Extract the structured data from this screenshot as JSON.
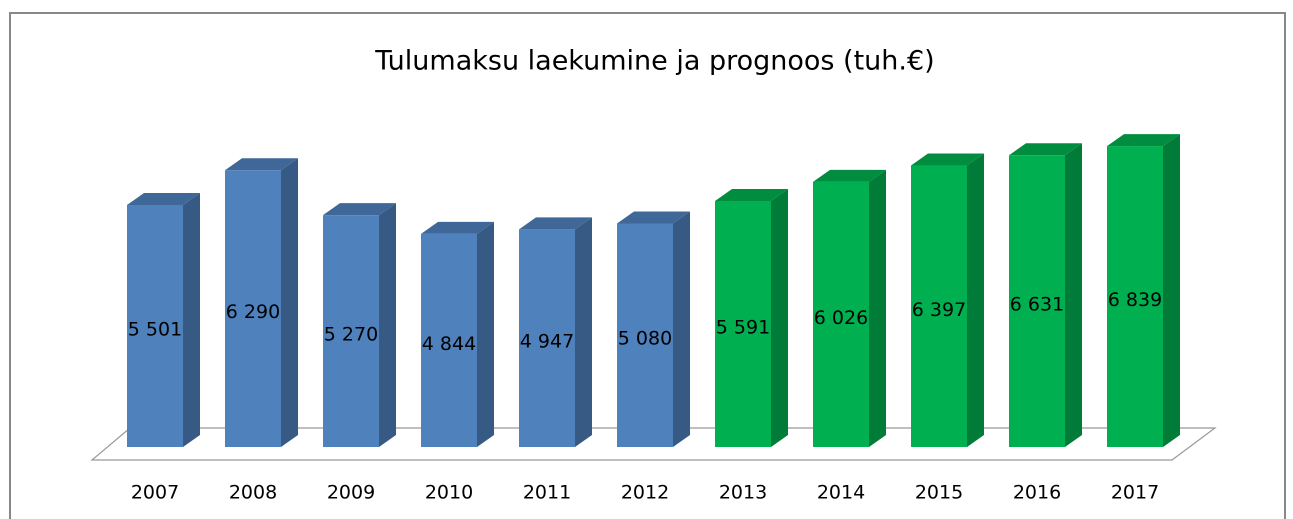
{
  "chart_data": {
    "type": "bar3d",
    "title": "Tulumaksu laekumine ja prognoos (tuh.€)",
    "categories": [
      "2007",
      "2008",
      "2009",
      "2010",
      "2011",
      "2012",
      "2013",
      "2014",
      "2015",
      "2016",
      "2017"
    ],
    "values": [
      5501,
      6290,
      5270,
      4844,
      4947,
      5080,
      5591,
      6026,
      6397,
      6631,
      6839
    ],
    "value_labels": [
      "5 501",
      "6 290",
      "5 270",
      "4 844",
      "4 947",
      "5 080",
      "5 591",
      "6 026",
      "6 397",
      "6 631",
      "6 839"
    ],
    "colors": [
      "#4f81bd",
      "#4f81bd",
      "#4f81bd",
      "#4f81bd",
      "#4f81bd",
      "#4f81bd",
      "#00b050",
      "#00b050",
      "#00b050",
      "#00b050",
      "#00b050"
    ]
  }
}
